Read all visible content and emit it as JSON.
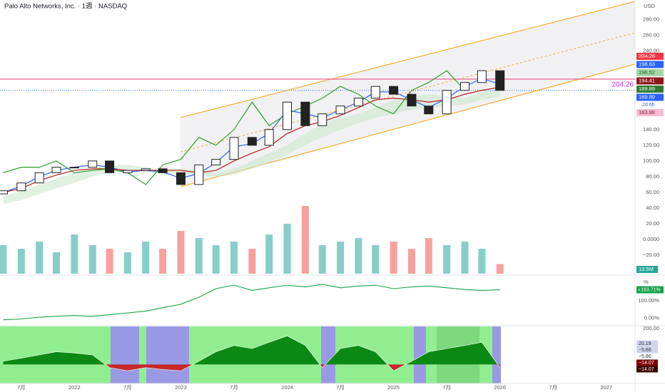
{
  "chart_data": [
    {
      "type": "candlestick",
      "title": "Palo Alto Networks, Inc. · 1週 · NASDAQ",
      "currency": "USD",
      "x": [
        2021.33,
        2021.5,
        2021.67,
        2021.83,
        2022,
        2022.17,
        2022.33,
        2022.5,
        2022.67,
        2022.83,
        2023,
        2023.17,
        2023.33,
        2023.5,
        2023.67,
        2023.83,
        2024,
        2024.17,
        2024.33,
        2024.5,
        2024.67,
        2024.83,
        2025,
        2025.17,
        2025.33,
        2025.5,
        2025.67,
        2025.83,
        2026
      ],
      "open": [
        58,
        62,
        72,
        85,
        92,
        92,
        100,
        85,
        88,
        90,
        85,
        70,
        95,
        102,
        130,
        120,
        140,
        175,
        145,
        160,
        170,
        180,
        195,
        185,
        170,
        160,
        190,
        200,
        215
      ],
      "close": [
        62,
        72,
        85,
        92,
        92,
        100,
        85,
        88,
        90,
        85,
        70,
        95,
        102,
        130,
        120,
        140,
        175,
        145,
        160,
        170,
        180,
        195,
        185,
        170,
        160,
        190,
        200,
        215,
        190
      ],
      "up_color": "#26a69a",
      "down_color": "#ef5350",
      "candle_color": "#222222",
      "lines": [
        {
          "color": "#2962ff",
          "values": [
            60,
            68,
            80,
            88,
            92,
            95,
            92,
            86,
            88,
            86,
            78,
            84,
            98,
            118,
            122,
            135,
            165,
            160,
            155,
            165,
            175,
            188,
            188,
            178,
            168,
            180,
            195,
            205,
            198
          ]
        },
        {
          "color": "#b71c1c",
          "values": [
            60,
            65,
            75,
            82,
            88,
            90,
            90,
            88,
            88,
            88,
            88,
            85,
            88,
            100,
            110,
            118,
            135,
            145,
            150,
            158,
            168,
            178,
            180,
            178,
            175,
            178,
            185,
            190,
            194
          ]
        },
        {
          "color": "#2e9d2e",
          "values": [
            85,
            92,
            92,
            100,
            85,
            88,
            90,
            85,
            70,
            95,
            102,
            130,
            120,
            140,
            175,
            145,
            160,
            170,
            180,
            195,
            185,
            170,
            160,
            190,
            200,
            215,
            190,
            null,
            null
          ]
        }
      ],
      "cloud": {
        "color": "#c8e6c9",
        "upper": [
          55,
          62,
          70,
          78,
          85,
          90,
          95,
          95,
          92,
          90,
          90,
          88,
          85,
          90,
          100,
          110,
          120,
          135,
          148,
          155,
          160,
          168,
          178,
          182,
          185,
          182,
          180,
          188,
          192
        ],
        "lower": [
          45,
          50,
          58,
          65,
          72,
          80,
          85,
          88,
          86,
          84,
          84,
          82,
          80,
          82,
          90,
          98,
          108,
          120,
          130,
          140,
          148,
          155,
          160,
          165,
          168,
          170,
          172,
          178,
          182
        ]
      },
      "volume": {
        "values": [
          40,
          35,
          45,
          30,
          55,
          40,
          35,
          30,
          45,
          35,
          60,
          50,
          40,
          45,
          35,
          55,
          70,
          95,
          40,
          45,
          50,
          40,
          45,
          35,
          50,
          40,
          45,
          35,
          13.5
        ],
        "last_label": "13.5M"
      },
      "hline": 204.26,
      "hline_color": "#f06292",
      "ref_line": 189.89,
      "price_labels": [
        {
          "value": 204.26,
          "color": "#f23645"
        },
        {
          "value": 198.63,
          "color": "#2962ff"
        },
        {
          "value": 196.52,
          "color": "#a5d6a7"
        },
        {
          "value": 194.41,
          "color": "#8b1a1a"
        },
        {
          "value": 189.89,
          "color": "#2e7d32"
        },
        {
          "value": 189.89,
          "color": "#2962ff"
        }
      ],
      "countdown": "2d 6h",
      "cloud_label": 183.88,
      "xlim": [
        2021.3,
        2027.27
      ],
      "xticks": [
        {
          "value": 2021.5,
          "label": "7月"
        },
        {
          "value": 2022,
          "label": "2022"
        },
        {
          "value": 2022.5,
          "label": "7月"
        },
        {
          "value": 2023,
          "label": "2023"
        },
        {
          "value": 2023.5,
          "label": "7月"
        },
        {
          "value": 2024,
          "label": "2024"
        },
        {
          "value": 2024.5,
          "label": "7月"
        },
        {
          "value": 2025,
          "label": "2025"
        },
        {
          "value": 2025.5,
          "label": "7月"
        },
        {
          "value": 2026,
          "label": "2026"
        },
        {
          "value": 2026.5,
          "label": "7月"
        },
        {
          "value": 2027,
          "label": "2027"
        }
      ],
      "ylim": [
        -40,
        296
      ],
      "yticks": [
        {
          "value": 280,
          "label": "280.00"
        },
        {
          "value": 260,
          "label": "260.00"
        },
        {
          "value": 240,
          "label": "240.00"
        },
        {
          "value": 160,
          "label": "160.00"
        },
        {
          "value": 140,
          "label": "140.00"
        },
        {
          "value": 120,
          "label": "120.00"
        },
        {
          "value": 100,
          "label": "100.00"
        },
        {
          "value": 80,
          "label": "80.00"
        },
        {
          "value": 60,
          "label": "60.00"
        },
        {
          "value": 40,
          "label": "40.00"
        },
        {
          "value": 20,
          "label": "20.00"
        },
        {
          "value": 0,
          "label": "0.0000"
        },
        {
          "value": -20,
          "label": "−20.00"
        }
      ]
    },
    {
      "type": "line",
      "unit": "%",
      "color": "#16a34a",
      "x": [
        2021.33,
        2021.5,
        2021.67,
        2021.83,
        2022,
        2022.17,
        2022.33,
        2022.5,
        2022.67,
        2022.83,
        2023,
        2023.17,
        2023.33,
        2023.5,
        2023.67,
        2023.83,
        2024,
        2024.17,
        2024.33,
        2024.5,
        2024.67,
        2024.83,
        2025,
        2025.17,
        2025.33,
        2025.5,
        2025.67,
        2025.83,
        2026
      ],
      "values": [
        -10,
        -5,
        5,
        10,
        15,
        10,
        20,
        30,
        40,
        60,
        80,
        120,
        170,
        190,
        160,
        175,
        190,
        180,
        195,
        175,
        185,
        190,
        170,
        180,
        185,
        175,
        165,
        160,
        163.71
      ],
      "last_label": "+163.71%",
      "ylim": [
        -40,
        240
      ],
      "yticks": [
        {
          "value": 100,
          "label": "100.00%"
        },
        {
          "value": 0,
          "label": "0.00%"
        }
      ]
    },
    {
      "type": "area",
      "scale_label": "200.00",
      "color": "#0a8a14",
      "neg_color": "#c62828",
      "x": [
        2021.33,
        2021.5,
        2021.67,
        2021.83,
        2022,
        2022.17,
        2022.33,
        2022.5,
        2022.67,
        2022.83,
        2023,
        2023.17,
        2023.33,
        2023.5,
        2023.67,
        2023.83,
        2024,
        2024.17,
        2024.33,
        2024.5,
        2024.67,
        2024.83,
        2025,
        2025.17,
        2025.33,
        2025.5,
        2025.67,
        2025.83,
        2026
      ],
      "values": [
        5,
        10,
        15,
        20,
        18,
        15,
        -5,
        -10,
        -5,
        -8,
        -10,
        5,
        20,
        30,
        25,
        35,
        45,
        30,
        -5,
        25,
        30,
        20,
        -10,
        5,
        20,
        25,
        30,
        35,
        -5
      ],
      "ylim": [
        -30,
        60
      ],
      "right_labels": [
        {
          "value": 20.19,
          "label": "20.19",
          "color": "#d1d5f0"
        },
        {
          "value": -5.86,
          "label": "−5.86",
          "color": "#d1d5f0"
        },
        {
          "value": -5.86,
          "label": "−5.86",
          "color": "#ffffff"
        },
        {
          "value": -14.07,
          "label": "−14.07",
          "color": "#7f0000"
        },
        {
          "value": -14.07,
          "label": "−14.07",
          "color": "#3b0000"
        }
      ]
    }
  ]
}
